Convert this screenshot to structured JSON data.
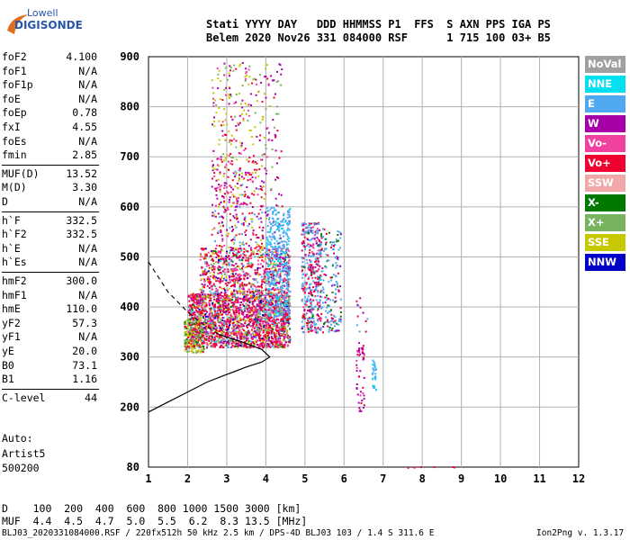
{
  "logo": {
    "line1": "Lowell",
    "line2": "DIGISONDE"
  },
  "header": {
    "labels": "Stati YYYY DAY   DDD HHMMSS P1  FFS  S AXN PPS IGA PS",
    "values": "Belem 2020 Nov26 331 084000 RSF      1 715 100 03+ B5"
  },
  "params": [
    {
      "label": "foF2",
      "value": "4.100"
    },
    {
      "label": "foF1",
      "value": "N/A"
    },
    {
      "label": "foF1p",
      "value": "N/A"
    },
    {
      "label": "foE",
      "value": "N/A"
    },
    {
      "label": "foEp",
      "value": "0.78"
    },
    {
      "label": "fxI",
      "value": "4.55"
    },
    {
      "label": "foEs",
      "value": "N/A"
    },
    {
      "label": "fmin",
      "value": "2.85"
    },
    {
      "label": "MUF(D)",
      "value": "13.52"
    },
    {
      "label": "M(D)",
      "value": "3.30"
    },
    {
      "label": "D",
      "value": "N/A"
    },
    {
      "label": "h`F",
      "value": "332.5"
    },
    {
      "label": "h`F2",
      "value": "332.5"
    },
    {
      "label": "h`E",
      "value": "N/A"
    },
    {
      "label": "h`Es",
      "value": "N/A"
    },
    {
      "label": "hmF2",
      "value": "300.0"
    },
    {
      "label": "hmF1",
      "value": "N/A"
    },
    {
      "label": "hmE",
      "value": "110.0"
    },
    {
      "label": "yF2",
      "value": "57.3"
    },
    {
      "label": "yF1",
      "value": "N/A"
    },
    {
      "label": "yE",
      "value": "20.0"
    },
    {
      "label": "B0",
      "value": "73.1"
    },
    {
      "label": "B1",
      "value": "1.16"
    },
    {
      "label": "C-level",
      "value": "44"
    }
  ],
  "auto": {
    "line1": "Auto:",
    "line2": "Artist5",
    "line3": "500200"
  },
  "distance_table": {
    "d_row": "D    100  200  400  600  800 1000 1500 3000 [km]",
    "muf_row": "MUF  4.4  4.5  4.7  5.0  5.5  6.2  8.3 13.5 [MHz]"
  },
  "footer": {
    "left": "BLJ03_2020331084000.RSF / 220fx512h 50 kHz 2.5 km / DPS-4D BLJ03 103 / 1.4 S 311.6 E",
    "right": "Ion2Png v. 1.3.17"
  },
  "legend": [
    {
      "label": "NoVal",
      "color": "#a0a0a0"
    },
    {
      "label": "NNE",
      "color": "#00e0f0"
    },
    {
      "label": "E",
      "color": "#50a8f0"
    },
    {
      "label": "W",
      "color": "#a800a8"
    },
    {
      "label": "Vo-",
      "color": "#f040a0"
    },
    {
      "label": "Vo+",
      "color": "#f00030"
    },
    {
      "label": "SSW",
      "color": "#f0a8a8"
    },
    {
      "label": "X-",
      "color": "#007800"
    },
    {
      "label": "X+",
      "color": "#78b460"
    },
    {
      "label": "SSE",
      "color": "#c8c800"
    },
    {
      "label": "NNW",
      "color": "#0000c8"
    }
  ],
  "chart_data": {
    "type": "scatter",
    "x": {
      "min": 1,
      "max": 12,
      "ticks": [
        1,
        2,
        3,
        4,
        5,
        6,
        7,
        8,
        9,
        10,
        11,
        12
      ],
      "unit": "MHz"
    },
    "y": {
      "min": 80,
      "max": 900,
      "ticks": [
        80,
        200,
        300,
        400,
        500,
        600,
        700,
        800,
        900
      ],
      "unit": "km"
    },
    "grid": true,
    "legend_position": "right",
    "traces": [
      {
        "freq_range": [
          1.9,
          4.6
        ],
        "height_range": [
          310,
          500
        ],
        "note": "dense F-layer trace"
      },
      {
        "freq_range": [
          2.5,
          4.2
        ],
        "height_range": [
          500,
          890
        ],
        "note": "sparse upper echoes"
      },
      {
        "freq_range": [
          4.0,
          4.6
        ],
        "height_range": [
          400,
          600
        ],
        "note": "E-direction echoes"
      },
      {
        "freq_range": [
          4.9,
          5.9
        ],
        "height_range": [
          340,
          600
        ],
        "note": "oblique echoes"
      },
      {
        "freq_range": [
          6.3,
          6.8
        ],
        "height_range": [
          190,
          330
        ],
        "note": "low isolated echoes"
      }
    ],
    "profile_curve": {
      "description": "electron density profile",
      "points": [
        [
          1,
          190
        ],
        [
          1.5,
          210
        ],
        [
          2,
          230
        ],
        [
          2.5,
          250
        ],
        [
          3,
          265
        ],
        [
          3.5,
          280
        ],
        [
          3.9,
          290
        ],
        [
          4.1,
          300
        ],
        [
          3.9,
          315
        ],
        [
          3.4,
          330
        ],
        [
          3.0,
          340
        ],
        [
          2.8,
          345
        ]
      ]
    },
    "profile_dashed": {
      "points": [
        [
          1,
          490
        ],
        [
          1.5,
          430
        ],
        [
          2,
          390
        ],
        [
          2.4,
          365
        ],
        [
          2.8,
          345
        ]
      ]
    }
  }
}
